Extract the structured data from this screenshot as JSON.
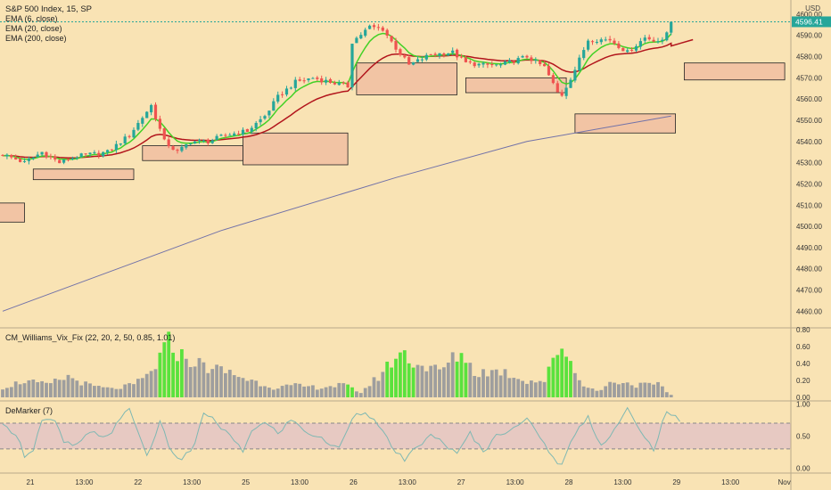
{
  "header": {
    "symbol": "S&P 500 Index, 15, SP",
    "indicators": [
      "EMA (6, close)",
      "EMA (20, close)",
      "EMA (200, close)"
    ],
    "currency": "USD",
    "last_price": "4596.41",
    "last_price_color": "#26a69a"
  },
  "colors": {
    "background": "#f9e3b4",
    "up_candle": "#26a69a",
    "down_candle": "#ef5350",
    "ema6": "#43d126",
    "ema20": "#b2151c",
    "ema200": "#7272a8",
    "zone_fill": "#f2c4a4",
    "vix_gray": "#9e9e9e",
    "vix_green": "#5ae23d",
    "demarker_line": "#7fb8b3",
    "demarker_band": "#e7c9c2"
  },
  "panes": {
    "vix_title": "CM_Williams_Vix_Fix (22, 20, 2, 50, 0.85, 1.01)",
    "demarker_title": "DeMarker (7)"
  },
  "chart_data": [
    {
      "type": "candlestick",
      "title": "S&P 500 Index, 15, SP",
      "ylim": [
        4453,
        4605
      ],
      "y_ticks": [
        4460,
        4470,
        4480,
        4490,
        4500,
        4510,
        4520,
        4530,
        4540,
        4550,
        4560,
        4570,
        4580,
        4590,
        4600
      ],
      "x_ticks": [
        "21",
        "13:00",
        "22",
        "13:00",
        "25",
        "13:00",
        "26",
        "13:00",
        "27",
        "13:00",
        "28",
        "13:00",
        "29",
        "13:00",
        "Nov"
      ],
      "anchors": [
        {
          "t": 0,
          "v": 4534
        },
        {
          "t": 5,
          "v": 4530
        },
        {
          "t": 9,
          "v": 4535
        },
        {
          "t": 13,
          "v": 4530
        },
        {
          "t": 17,
          "v": 4533
        },
        {
          "t": 24,
          "v": 4535
        },
        {
          "t": 29,
          "v": 4543
        },
        {
          "t": 34,
          "v": 4557
        },
        {
          "t": 37,
          "v": 4540
        },
        {
          "t": 40,
          "v": 4535
        },
        {
          "t": 43,
          "v": 4540
        },
        {
          "t": 47,
          "v": 4540
        },
        {
          "t": 51,
          "v": 4543
        },
        {
          "t": 56,
          "v": 4545
        },
        {
          "t": 60,
          "v": 4552
        },
        {
          "t": 63,
          "v": 4561
        },
        {
          "t": 67,
          "v": 4568
        },
        {
          "t": 71,
          "v": 4570
        },
        {
          "t": 75,
          "v": 4568
        },
        {
          "t": 79,
          "v": 4566
        },
        {
          "t": 80,
          "v": 4587
        },
        {
          "t": 84,
          "v": 4594
        },
        {
          "t": 87,
          "v": 4593
        },
        {
          "t": 90,
          "v": 4584
        },
        {
          "t": 93,
          "v": 4576
        },
        {
          "t": 98,
          "v": 4581
        },
        {
          "t": 103,
          "v": 4582
        },
        {
          "t": 106,
          "v": 4577
        },
        {
          "t": 110,
          "v": 4576
        },
        {
          "t": 114,
          "v": 4576
        },
        {
          "t": 120,
          "v": 4580
        },
        {
          "t": 124,
          "v": 4575
        },
        {
          "t": 127,
          "v": 4563
        },
        {
          "t": 128,
          "v": 4562
        },
        {
          "t": 131,
          "v": 4574
        },
        {
          "t": 134,
          "v": 4588
        },
        {
          "t": 139,
          "v": 4588
        },
        {
          "t": 143,
          "v": 4582
        },
        {
          "t": 147,
          "v": 4589
        },
        {
          "t": 151,
          "v": 4587
        },
        {
          "t": 153,
          "v": 4596
        }
      ],
      "ema200": [
        [
          0,
          4460
        ],
        [
          50,
          4498
        ],
        [
          90,
          4523
        ],
        [
          120,
          4540
        ],
        [
          153,
          4552
        ]
      ],
      "ema20_tail": [
        [
          153,
          4585
        ],
        [
          158,
          4588
        ]
      ],
      "zones": [
        {
          "t0": -3,
          "t1": 5,
          "low": 4502,
          "high": 4511
        },
        {
          "t0": 7,
          "t1": 30,
          "low": 4522,
          "high": 4527
        },
        {
          "t0": 32,
          "t1": 55,
          "low": 4531,
          "high": 4538
        },
        {
          "t0": 55,
          "t1": 79,
          "low": 4529,
          "high": 4544
        },
        {
          "t0": 81,
          "t1": 104,
          "low": 4562,
          "high": 4577
        },
        {
          "t0": 106,
          "t1": 129,
          "low": 4563,
          "high": 4570
        },
        {
          "t0": 131,
          "t1": 154,
          "low": 4544,
          "high": 4553
        },
        {
          "t0": 156,
          "t1": 179,
          "low": 4569,
          "high": 4577
        }
      ]
    },
    {
      "type": "bar",
      "title": "CM_Williams_Vix_Fix (22, 20, 2, 50, 0.85, 1.01)",
      "ylim": [
        0,
        0.8
      ],
      "y_ticks": [
        0.0,
        0.2,
        0.4,
        0.6,
        0.8
      ],
      "green_ranges": [
        [
          36,
          41
        ],
        [
          88,
          94
        ],
        [
          104,
          106
        ],
        [
          125,
          130
        ],
        [
          79,
          80
        ]
      ],
      "anchors": [
        {
          "t": 0,
          "v": 0.12
        },
        {
          "t": 5,
          "v": 0.2
        },
        {
          "t": 10,
          "v": 0.15
        },
        {
          "t": 15,
          "v": 0.25
        },
        {
          "t": 20,
          "v": 0.14
        },
        {
          "t": 25,
          "v": 0.1
        },
        {
          "t": 30,
          "v": 0.15
        },
        {
          "t": 34,
          "v": 0.3
        },
        {
          "t": 38,
          "v": 0.66
        },
        {
          "t": 41,
          "v": 0.5
        },
        {
          "t": 46,
          "v": 0.38
        },
        {
          "t": 52,
          "v": 0.3
        },
        {
          "t": 56,
          "v": 0.22
        },
        {
          "t": 62,
          "v": 0.12
        },
        {
          "t": 67,
          "v": 0.14
        },
        {
          "t": 72,
          "v": 0.12
        },
        {
          "t": 78,
          "v": 0.15
        },
        {
          "t": 82,
          "v": 0.06
        },
        {
          "t": 86,
          "v": 0.25
        },
        {
          "t": 91,
          "v": 0.55
        },
        {
          "t": 95,
          "v": 0.4
        },
        {
          "t": 100,
          "v": 0.32
        },
        {
          "t": 105,
          "v": 0.55
        },
        {
          "t": 108,
          "v": 0.3
        },
        {
          "t": 114,
          "v": 0.32
        },
        {
          "t": 120,
          "v": 0.2
        },
        {
          "t": 124,
          "v": 0.2
        },
        {
          "t": 128,
          "v": 0.66
        },
        {
          "t": 132,
          "v": 0.2
        },
        {
          "t": 136,
          "v": 0.07
        },
        {
          "t": 140,
          "v": 0.2
        },
        {
          "t": 145,
          "v": 0.15
        },
        {
          "t": 150,
          "v": 0.15
        },
        {
          "t": 153,
          "v": 0.03
        }
      ]
    },
    {
      "type": "line",
      "title": "DeMarker (7)",
      "ylim": [
        -0.05,
        1.02
      ],
      "y_ticks": [
        0.0,
        0.5,
        1.0
      ],
      "band": [
        0.3,
        0.7
      ],
      "anchors": [
        {
          "t": 0,
          "v": 0.65
        },
        {
          "t": 3,
          "v": 0.55
        },
        {
          "t": 5,
          "v": 0.2
        },
        {
          "t": 7,
          "v": 0.3
        },
        {
          "t": 9,
          "v": 0.75
        },
        {
          "t": 12,
          "v": 0.72
        },
        {
          "t": 14,
          "v": 0.4
        },
        {
          "t": 17,
          "v": 0.35
        },
        {
          "t": 20,
          "v": 0.55
        },
        {
          "t": 24,
          "v": 0.5
        },
        {
          "t": 27,
          "v": 0.75
        },
        {
          "t": 29,
          "v": 0.95
        },
        {
          "t": 31,
          "v": 0.55
        },
        {
          "t": 33,
          "v": 0.2
        },
        {
          "t": 36,
          "v": 0.7
        },
        {
          "t": 39,
          "v": 0.2
        },
        {
          "t": 41,
          "v": 0.15
        },
        {
          "t": 44,
          "v": 0.35
        },
        {
          "t": 46,
          "v": 0.88
        },
        {
          "t": 49,
          "v": 0.7
        },
        {
          "t": 52,
          "v": 0.5
        },
        {
          "t": 55,
          "v": 0.25
        },
        {
          "t": 57,
          "v": 0.6
        },
        {
          "t": 60,
          "v": 0.7
        },
        {
          "t": 63,
          "v": 0.55
        },
        {
          "t": 66,
          "v": 0.75
        },
        {
          "t": 70,
          "v": 0.55
        },
        {
          "t": 73,
          "v": 0.45
        },
        {
          "t": 77,
          "v": 0.3
        },
        {
          "t": 80,
          "v": 0.8
        },
        {
          "t": 83,
          "v": 0.9
        },
        {
          "t": 86,
          "v": 0.65
        },
        {
          "t": 89,
          "v": 0.35
        },
        {
          "t": 92,
          "v": 0.1
        },
        {
          "t": 95,
          "v": 0.35
        },
        {
          "t": 98,
          "v": 0.5
        },
        {
          "t": 101,
          "v": 0.4
        },
        {
          "t": 104,
          "v": 0.2
        },
        {
          "t": 107,
          "v": 0.55
        },
        {
          "t": 110,
          "v": 0.25
        },
        {
          "t": 113,
          "v": 0.5
        },
        {
          "t": 117,
          "v": 0.65
        },
        {
          "t": 120,
          "v": 0.75
        },
        {
          "t": 123,
          "v": 0.5
        },
        {
          "t": 126,
          "v": 0.15
        },
        {
          "t": 128,
          "v": 0.05
        },
        {
          "t": 131,
          "v": 0.55
        },
        {
          "t": 134,
          "v": 0.8
        },
        {
          "t": 137,
          "v": 0.35
        },
        {
          "t": 140,
          "v": 0.6
        },
        {
          "t": 143,
          "v": 0.92
        },
        {
          "t": 146,
          "v": 0.55
        },
        {
          "t": 149,
          "v": 0.3
        },
        {
          "t": 152,
          "v": 0.9
        },
        {
          "t": 155,
          "v": 0.72
        }
      ]
    }
  ]
}
